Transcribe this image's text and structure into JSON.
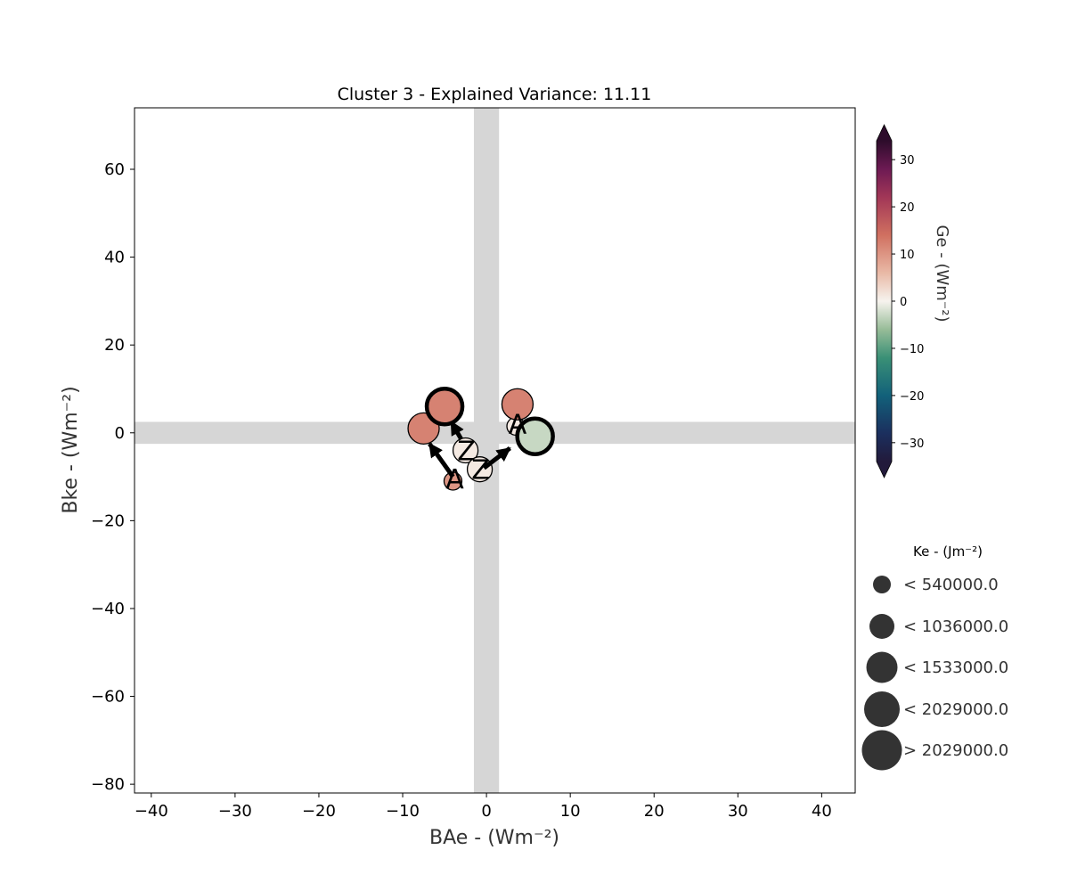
{
  "chart_data": {
    "type": "scatter",
    "title": "Cluster 3 - Explained Variance: 11.11",
    "xlabel": "BAe - (Wm⁻²)",
    "ylabel": "Bke - (Wm⁻²)",
    "xlim": [
      -42,
      44
    ],
    "ylim": [
      -82,
      74
    ],
    "xticks": [
      -40,
      -30,
      -20,
      -10,
      0,
      10,
      20,
      30,
      40
    ],
    "yticks": [
      -80,
      -60,
      -40,
      -20,
      0,
      20,
      40,
      60
    ],
    "shaded_band_x": [
      -1.5,
      1.5
    ],
    "shaded_band_y": [
      -2.5,
      2.5
    ],
    "grid": false,
    "trajectories": [
      {
        "start_label": "A",
        "end_label": "Z",
        "points": [
          {
            "x": -4,
            "y": -11,
            "ge": 10,
            "ke_class": 0
          },
          {
            "x": -7.5,
            "y": 1,
            "ge": 12,
            "ke_class": 2
          },
          {
            "x": -5,
            "y": 6,
            "ge": 12,
            "ke_class": 3
          },
          {
            "x": -2.5,
            "y": -4,
            "ge": 1,
            "ke_class": 1
          }
        ]
      },
      {
        "start_label": "A",
        "end_label": "Z",
        "points": [
          {
            "x": 3.5,
            "y": 1.5,
            "ge": 1,
            "ke_class": 0
          },
          {
            "x": 3.7,
            "y": 6.5,
            "ge": 12,
            "ke_class": 2
          },
          {
            "x": 5.8,
            "y": -0.8,
            "ge": -3,
            "ke_class": 3
          },
          {
            "x": -0.8,
            "y": -8.3,
            "ge": 1,
            "ke_class": 1
          }
        ]
      }
    ],
    "arrows": [
      {
        "from": [
          -4,
          -10
        ],
        "to": [
          -6.8,
          -2.5
        ]
      },
      {
        "from": [
          -3,
          -1.5
        ],
        "to": [
          -4.2,
          2.5
        ]
      },
      {
        "from": [
          -0.3,
          -8
        ],
        "to": [
          2.8,
          -3.5
        ]
      }
    ],
    "colorbar": {
      "label": "Ge - (Wm⁻²)",
      "range": [
        -34,
        34
      ],
      "ticks": [
        -30,
        -20,
        -10,
        0,
        10,
        20,
        30
      ],
      "extend": "both",
      "stops": [
        {
          "v": -34,
          "color": "#221a3b"
        },
        {
          "v": -28,
          "color": "#1b2f5e"
        },
        {
          "v": -20,
          "color": "#12617a"
        },
        {
          "v": -12,
          "color": "#3a9076"
        },
        {
          "v": -6,
          "color": "#97bc98"
        },
        {
          "v": 0,
          "color": "#f6f3ee"
        },
        {
          "v": 6,
          "color": "#e9b9a6"
        },
        {
          "v": 14,
          "color": "#d07060"
        },
        {
          "v": 22,
          "color": "#a23757"
        },
        {
          "v": 28,
          "color": "#6d1a53"
        },
        {
          "v": 34,
          "color": "#2d0c2b"
        }
      ]
    },
    "size_legend": {
      "title": "Ke - (Jm⁻²)",
      "entries": [
        {
          "label": "< 540000.0"
        },
        {
          "label": "< 1036000.0"
        },
        {
          "label": "< 1533000.0"
        },
        {
          "label": "< 2029000.0"
        },
        {
          "label": "> 2029000.0"
        }
      ]
    }
  }
}
